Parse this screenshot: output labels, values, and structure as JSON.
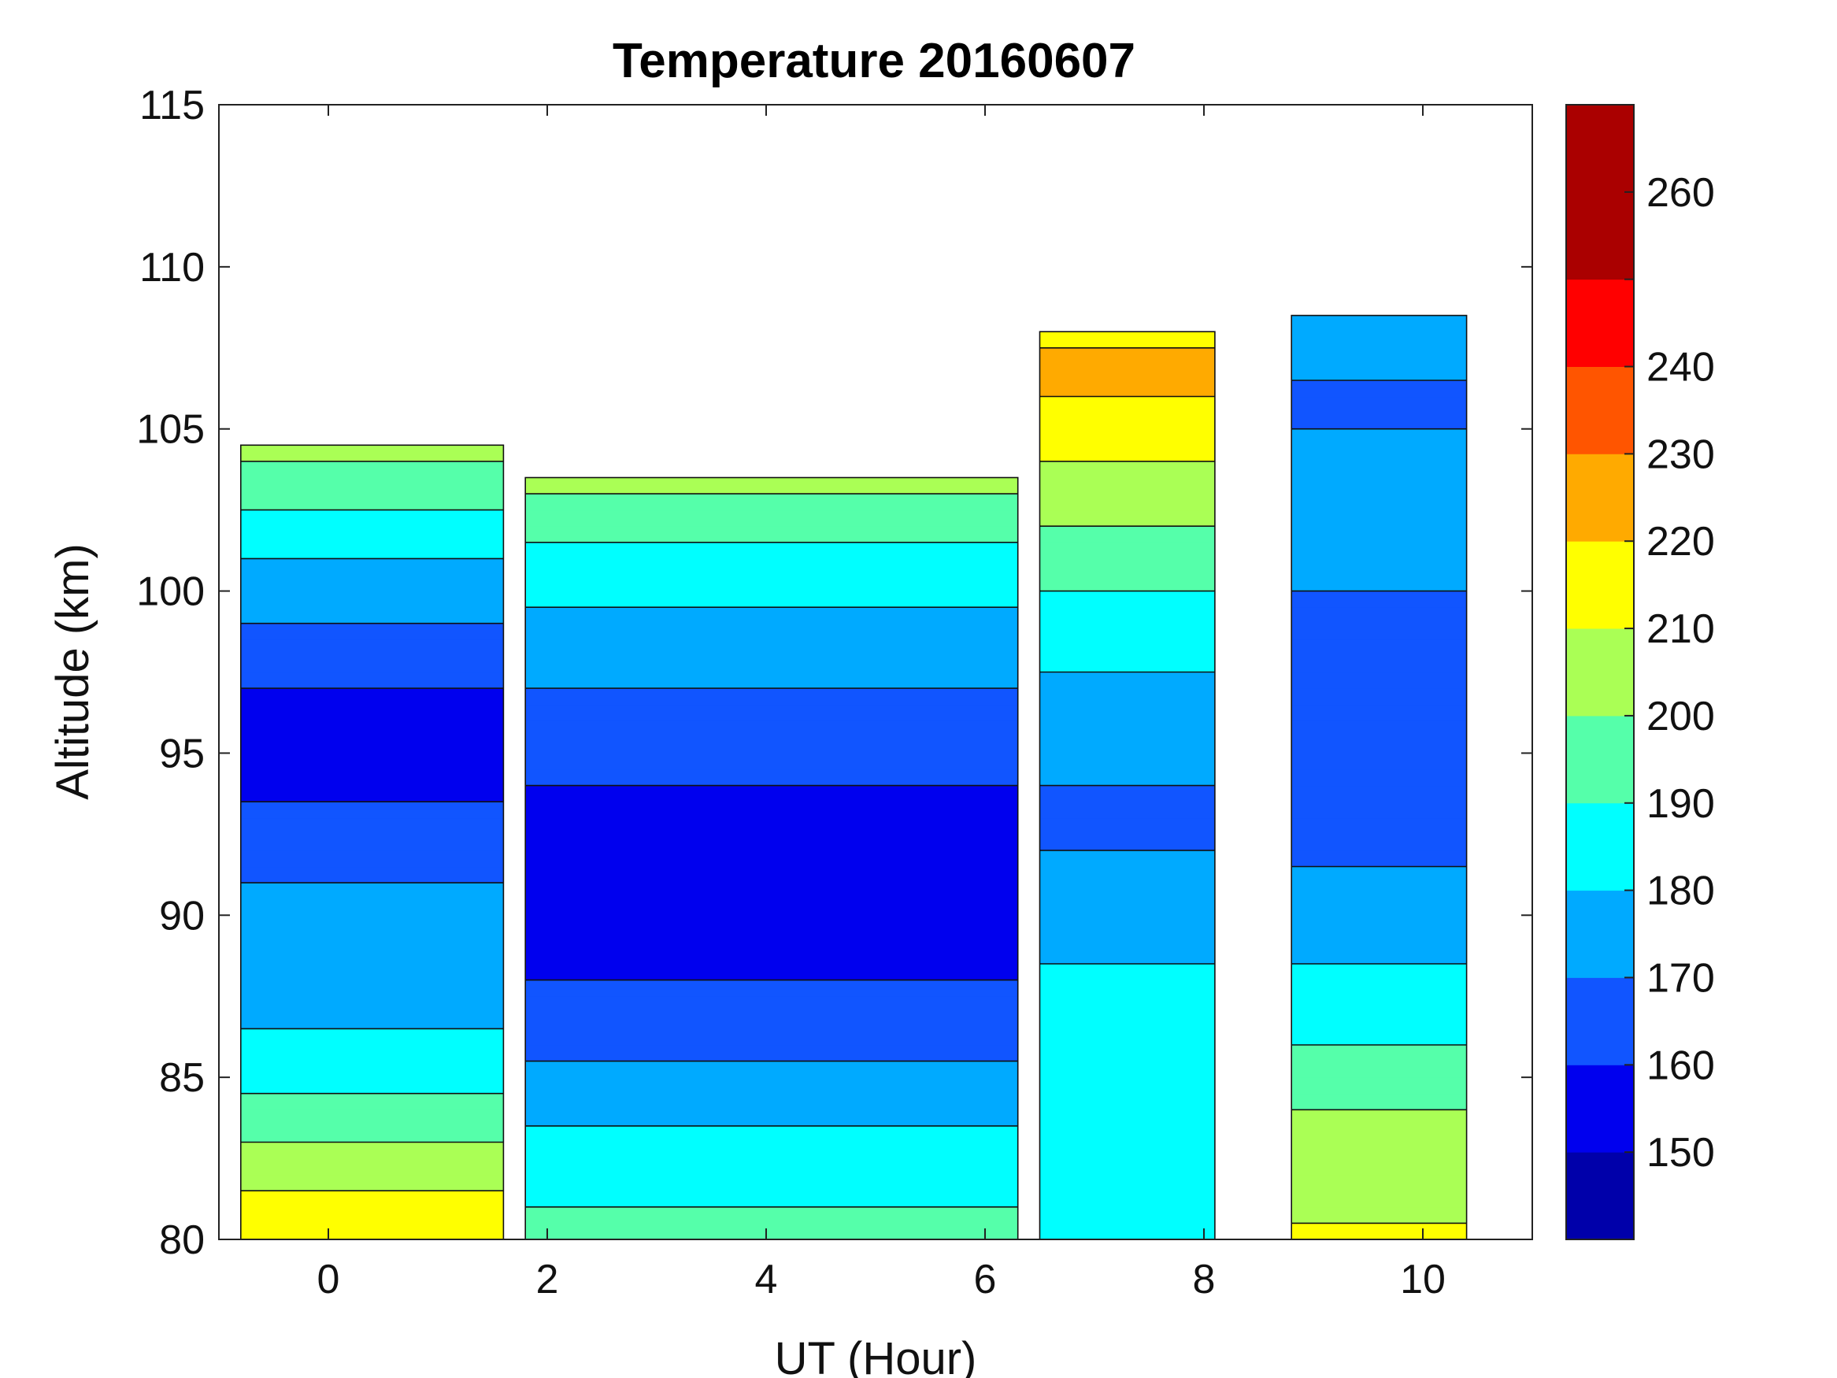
{
  "chart_data": {
    "type": "heatmap",
    "subtype": "filled-contour",
    "title": "Temperature 20160607",
    "xlabel": "UT (Hour)",
    "ylabel": "Altitude (km)",
    "xlim": [
      -1,
      11
    ],
    "ylim": [
      80,
      115
    ],
    "xticks": [
      0,
      2,
      4,
      6,
      8,
      10
    ],
    "yticks": [
      80,
      85,
      90,
      95,
      100,
      105,
      110,
      115
    ],
    "colorbar": {
      "range": [
        140,
        270
      ],
      "levels": [
        140,
        150,
        160,
        170,
        180,
        190,
        200,
        210,
        220,
        230,
        240,
        250,
        260,
        270
      ],
      "ticks": [
        150,
        160,
        170,
        180,
        190,
        200,
        210,
        220,
        230,
        240,
        250,
        260
      ],
      "tick_labels": [
        "150",
        "160",
        "170",
        "180",
        "190",
        "200",
        "210",
        "220",
        "230",
        "240",
        "",
        "260"
      ],
      "colors": [
        "#0000aa",
        "#0000ee",
        "#1155ff",
        "#00aaff",
        "#00ffff",
        "#55ffaa",
        "#aaff55",
        "#ffff00",
        "#ffaa00",
        "#ff5500",
        "#ff0000",
        "#aa0000",
        "#aa0000"
      ]
    },
    "segments": [
      {
        "x_range": [
          -0.8,
          1.6
        ],
        "top_km": 104.5,
        "profile": [
          [
            80,
            215
          ],
          [
            81.5,
            210
          ],
          [
            83,
            200
          ],
          [
            84.5,
            190
          ],
          [
            86,
            182
          ],
          [
            88,
            175
          ],
          [
            90,
            172
          ],
          [
            92,
            168
          ],
          [
            94,
            158
          ],
          [
            96,
            156
          ],
          [
            98,
            165
          ],
          [
            100,
            175
          ],
          [
            102,
            185
          ],
          [
            103.5,
            195
          ],
          [
            104.5,
            202
          ]
        ]
      },
      {
        "x_range": [
          1.8,
          6.3
        ],
        "top_km": 103.5,
        "profile": [
          [
            80,
            195
          ],
          [
            81.5,
            188
          ],
          [
            83,
            182
          ],
          [
            85,
            172
          ],
          [
            87,
            163
          ],
          [
            89,
            155
          ],
          [
            91,
            155
          ],
          [
            93,
            157
          ],
          [
            95,
            162
          ],
          [
            97,
            170
          ],
          [
            99,
            178
          ],
          [
            101,
            186
          ],
          [
            102.5,
            195
          ],
          [
            103.5,
            205
          ]
        ]
      },
      {
        "x_range": [
          6.5,
          8.1
        ],
        "top_km": 108,
        "profile": [
          [
            81,
            185
          ],
          [
            83,
            188
          ],
          [
            85,
            190
          ],
          [
            87,
            185
          ],
          [
            89,
            178
          ],
          [
            91,
            172
          ],
          [
            93,
            168
          ],
          [
            95,
            172
          ],
          [
            97,
            178
          ],
          [
            99,
            185
          ],
          [
            101,
            195
          ],
          [
            103,
            205
          ],
          [
            105,
            215
          ],
          [
            107,
            225
          ],
          [
            108,
            205
          ]
        ]
      },
      {
        "x_range": [
          8.8,
          10.4
        ],
        "top_km": 108.5,
        "profile": [
          [
            80,
            212
          ],
          [
            82,
            205
          ],
          [
            84,
            200
          ],
          [
            86,
            190
          ],
          [
            88,
            182
          ],
          [
            90,
            175
          ],
          [
            92,
            168
          ],
          [
            94,
            165
          ],
          [
            96,
            163
          ],
          [
            98,
            165
          ],
          [
            100,
            170
          ],
          [
            102,
            175
          ],
          [
            104,
            172
          ],
          [
            106,
            168
          ],
          [
            108.5,
            175
          ]
        ]
      }
    ]
  }
}
